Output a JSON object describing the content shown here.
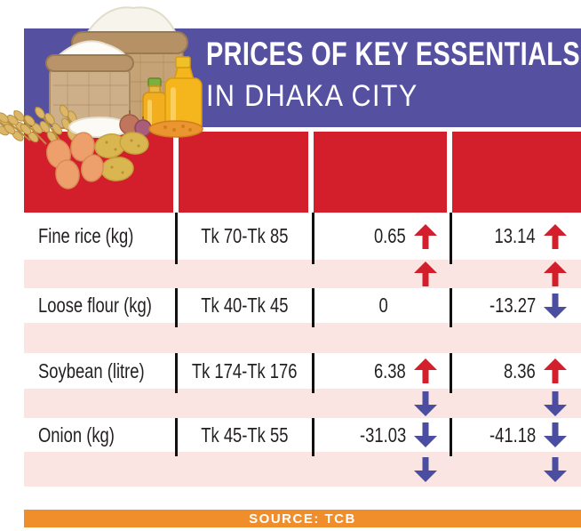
{
  "header": {
    "title_line1": "PRICES OF KEY ESSENTIALS",
    "title_line2": "IN DHAKA CITY"
  },
  "footer": {
    "source_label": "SOURCE: TCB"
  },
  "table": {
    "header_cells": [
      "",
      "",
      "",
      ""
    ],
    "rows": [
      {
        "type": "data",
        "item": "Fine rice (kg)",
        "price_range": "Tk 70-Tk 85",
        "change_1": "0.65",
        "arrow_1": "up",
        "change_2": "13.14",
        "arrow_2": "up"
      },
      {
        "type": "spacer",
        "arrow_1": "up",
        "arrow_2": "up"
      },
      {
        "type": "data",
        "item": "Loose flour (kg)",
        "price_range": "Tk 40-Tk 45",
        "change_1": "0",
        "arrow_1": null,
        "change_2": "-13.27",
        "arrow_2": "down"
      },
      {
        "type": "spacer",
        "arrow_1": null,
        "arrow_2": null
      },
      {
        "type": "data",
        "item": "Soybean (litre)",
        "price_range": "Tk 174-Tk 176",
        "change_1": "6.38",
        "arrow_1": "up",
        "change_2": "8.36",
        "arrow_2": "up"
      },
      {
        "type": "spacer",
        "arrow_1": "down",
        "arrow_2": "down"
      },
      {
        "type": "data",
        "item": "Onion (kg)",
        "price_range": "Tk 45-Tk 55",
        "change_1": "-31.03",
        "arrow_1": "down",
        "change_2": "-41.18",
        "arrow_2": "down"
      },
      {
        "type": "spacer",
        "arrow_1": "down",
        "arrow_2": "down"
      }
    ]
  },
  "chart_data": {
    "type": "table",
    "title": "PRICES OF KEY ESSENTIALS IN DHAKA CITY",
    "rows": [
      {
        "item": "Fine rice (kg)",
        "price_range": "Tk 70-Tk 85",
        "change_1": 0.65,
        "change_1_direction": "up",
        "change_2": 13.14,
        "change_2_direction": "up"
      },
      {
        "item": "Loose flour (kg)",
        "price_range": "Tk 40-Tk 45",
        "change_1": 0,
        "change_1_direction": null,
        "change_2": -13.27,
        "change_2_direction": "down"
      },
      {
        "item": "Soybean (litre)",
        "price_range": "Tk 174-Tk 176",
        "change_1": 6.38,
        "change_1_direction": "up",
        "change_2": 8.36,
        "change_2_direction": "up"
      },
      {
        "item": "Onion (kg)",
        "price_range": "Tk 45-Tk 55",
        "change_1": -31.03,
        "change_1_direction": "down",
        "change_2": -41.18,
        "change_2_direction": "down"
      }
    ],
    "source": "SOURCE: TCB"
  },
  "icons": {
    "up_arrow": "increase-arrow",
    "down_arrow": "decrease-arrow"
  },
  "colors": {
    "banner_purple": "#5551a0",
    "band_red": "#d31f2c",
    "row_pink": "#fbe5e3",
    "footer_orange": "#f08e2c",
    "arrow_red": "#d31f2c",
    "arrow_blue": "#4b4ea0",
    "text_black": "#231f20"
  }
}
